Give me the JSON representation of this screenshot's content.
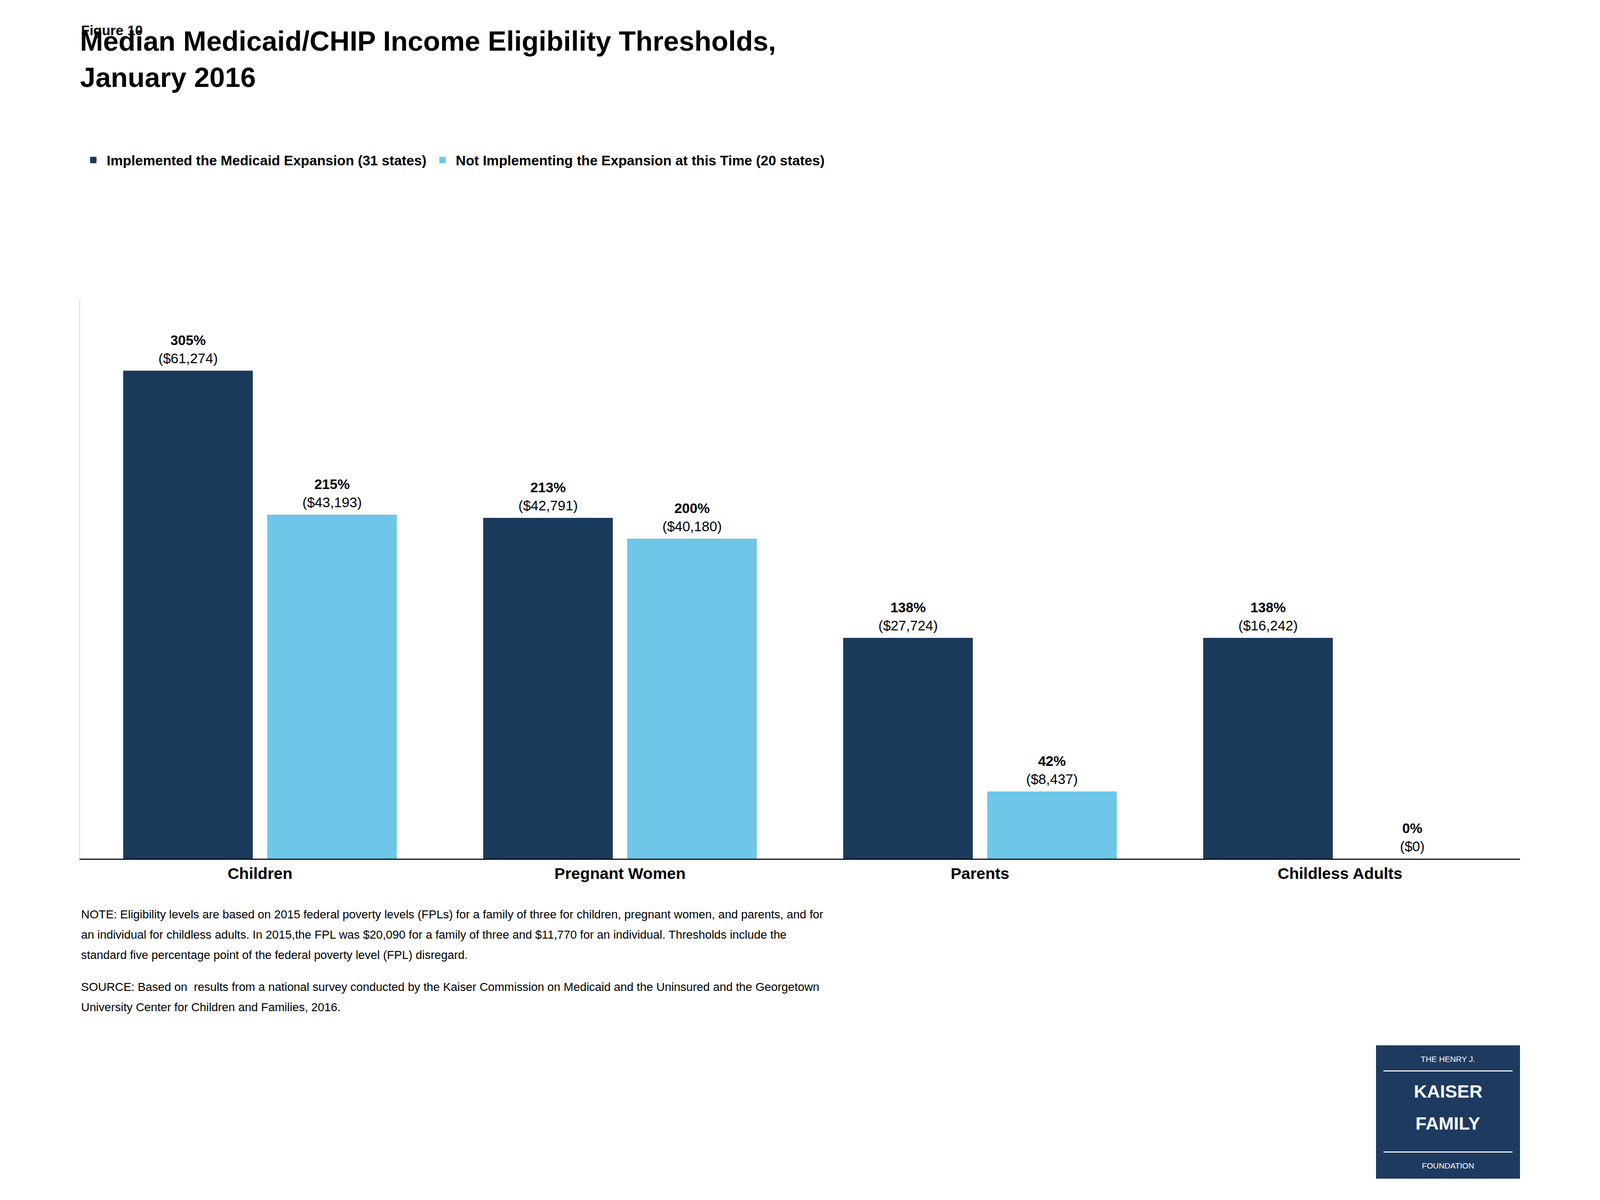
{
  "chart_data": {
    "type": "bar",
    "title": "Median Medicaid/CHIP Income Eligibility Thresholds,\nJanuary 2016",
    "categories": [
      "Children",
      "Pregnant Women",
      "Parents",
      "Childless Adults"
    ],
    "series": [
      {
        "name": "Implemented the Medicaid Expansion (31 states)",
        "color": "#1a3a5c",
        "values": [
          305,
          213,
          138,
          138
        ],
        "value_labels": [
          "305%",
          "213%",
          "138%",
          "138%"
        ],
        "dollar_labels": [
          "($61,274)",
          "($42,791)",
          "($27,724)",
          "($16,242)"
        ]
      },
      {
        "name": "Not Implementing the Expansion at this Time (20 states)",
        "color": "#6ec6e8",
        "values": [
          215,
          200,
          42,
          0
        ],
        "value_labels": [
          "215%",
          "200%",
          "42%",
          "0%"
        ],
        "dollar_labels": [
          "($43,193)",
          "($40,180)",
          "($8,437)",
          "($0)"
        ]
      }
    ],
    "ylim": [
      0,
      350
    ],
    "grid": false,
    "legend": "top",
    "data_labels": true,
    "tick_labels": "x",
    "annotations": {
      "figure_label": "Figure 10",
      "notes": [
        "NOTE: Eligibility levels are based on 2015 federal poverty levels (FPLs) for a family of three for children, pregnant women, and parents, and for",
        "an individual for childless adults. In 2015,the FPL was $20,090 for a family of three and $11,770 for an individual. Thresholds include the",
        "standard five percentage point of the federal poverty level (FPL) disregard."
      ],
      "source": [
        "SOURCE: Based on  results from a national survey conducted by the Kaiser Commission on Medicaid and the Uninsured and the Georgetown",
        "University Center for Children and Families, 2016."
      ],
      "logo": [
        "THE HENRY J.",
        "KAISER",
        "FAMILY",
        "FOUNDATION"
      ]
    }
  }
}
